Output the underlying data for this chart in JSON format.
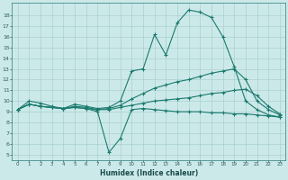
{
  "xlabel": "Humidex (Indice chaleur)",
  "bg_color": "#cce9e9",
  "grid_color": "#aad0d0",
  "line_color": "#1a7a6e",
  "xlim": [
    -0.5,
    23.5
  ],
  "ylim": [
    4.5,
    19.2
  ],
  "xticks": [
    0,
    1,
    2,
    3,
    4,
    5,
    6,
    7,
    8,
    9,
    10,
    11,
    12,
    13,
    14,
    15,
    16,
    17,
    18,
    19,
    20,
    21,
    22,
    23
  ],
  "yticks": [
    5,
    6,
    7,
    8,
    9,
    10,
    11,
    12,
    13,
    14,
    15,
    16,
    17,
    18
  ],
  "curve1_x": [
    0,
    1,
    2,
    3,
    4,
    5,
    6,
    7,
    8,
    9,
    10,
    11,
    12,
    13,
    14,
    15,
    16,
    17,
    18,
    19,
    20,
    21,
    22,
    23
  ],
  "curve1_y": [
    9.2,
    10.0,
    9.8,
    9.5,
    9.3,
    9.7,
    9.5,
    9.3,
    9.4,
    10.0,
    12.8,
    13.0,
    16.2,
    14.3,
    17.3,
    18.5,
    18.3,
    17.8,
    16.0,
    13.2,
    10.0,
    9.2,
    8.7,
    8.5
  ],
  "curve2_x": [
    0,
    1,
    2,
    3,
    4,
    5,
    6,
    7,
    8,
    9,
    10,
    11,
    12,
    13,
    14,
    15,
    16,
    17,
    18,
    19,
    20,
    21,
    22,
    23
  ],
  "curve2_y": [
    9.2,
    9.7,
    9.5,
    9.4,
    9.3,
    9.5,
    9.4,
    9.2,
    9.3,
    9.6,
    10.2,
    10.7,
    11.2,
    11.5,
    11.8,
    12.0,
    12.3,
    12.6,
    12.8,
    13.0,
    12.0,
    10.0,
    9.2,
    8.7
  ],
  "curve3_x": [
    0,
    1,
    2,
    3,
    4,
    5,
    6,
    7,
    8,
    9,
    10,
    11,
    12,
    13,
    14,
    15,
    16,
    17,
    18,
    19,
    20,
    21,
    22,
    23
  ],
  "curve3_y": [
    9.2,
    9.7,
    9.5,
    9.4,
    9.3,
    9.4,
    9.3,
    9.2,
    9.2,
    9.4,
    9.6,
    9.8,
    10.0,
    10.1,
    10.2,
    10.3,
    10.5,
    10.7,
    10.8,
    11.0,
    11.1,
    10.5,
    9.5,
    8.8
  ],
  "curve4_x": [
    0,
    1,
    2,
    3,
    4,
    5,
    6,
    7,
    8,
    9,
    10,
    11,
    12,
    13,
    14,
    15,
    16,
    17,
    18,
    19,
    20,
    21,
    22,
    23
  ],
  "curve4_y": [
    9.2,
    9.7,
    9.5,
    9.4,
    9.3,
    9.4,
    9.3,
    9.0,
    5.2,
    6.5,
    9.2,
    9.3,
    9.2,
    9.1,
    9.0,
    9.0,
    9.0,
    8.9,
    8.9,
    8.8,
    8.8,
    8.7,
    8.6,
    8.5
  ]
}
